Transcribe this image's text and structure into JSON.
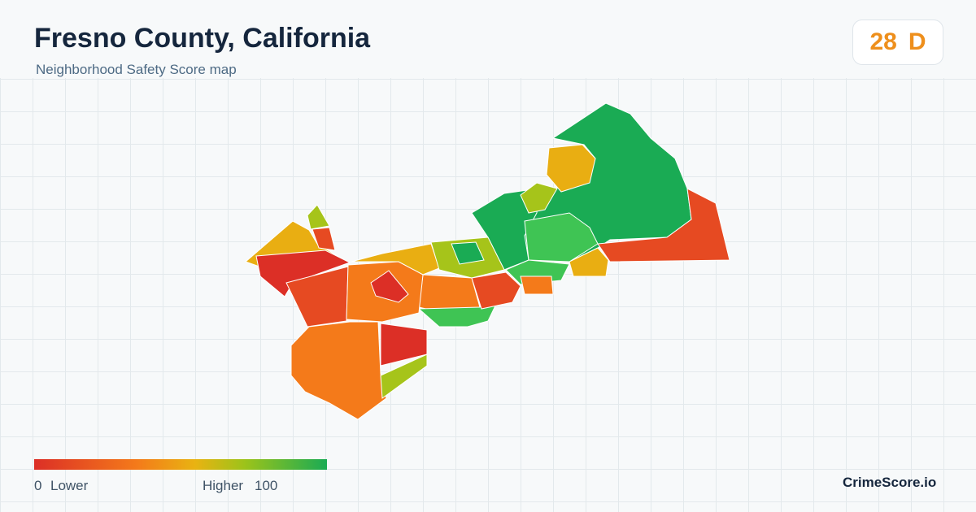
{
  "header": {
    "title": "Fresno County, California",
    "subtitle": "Neighborhood Safety Score map"
  },
  "score": {
    "value": "28",
    "grade": "D"
  },
  "legend": {
    "min": "0",
    "min_label": "Lower",
    "max_label": "Higher",
    "max": "100"
  },
  "brand": "CrimeScore.io"
}
